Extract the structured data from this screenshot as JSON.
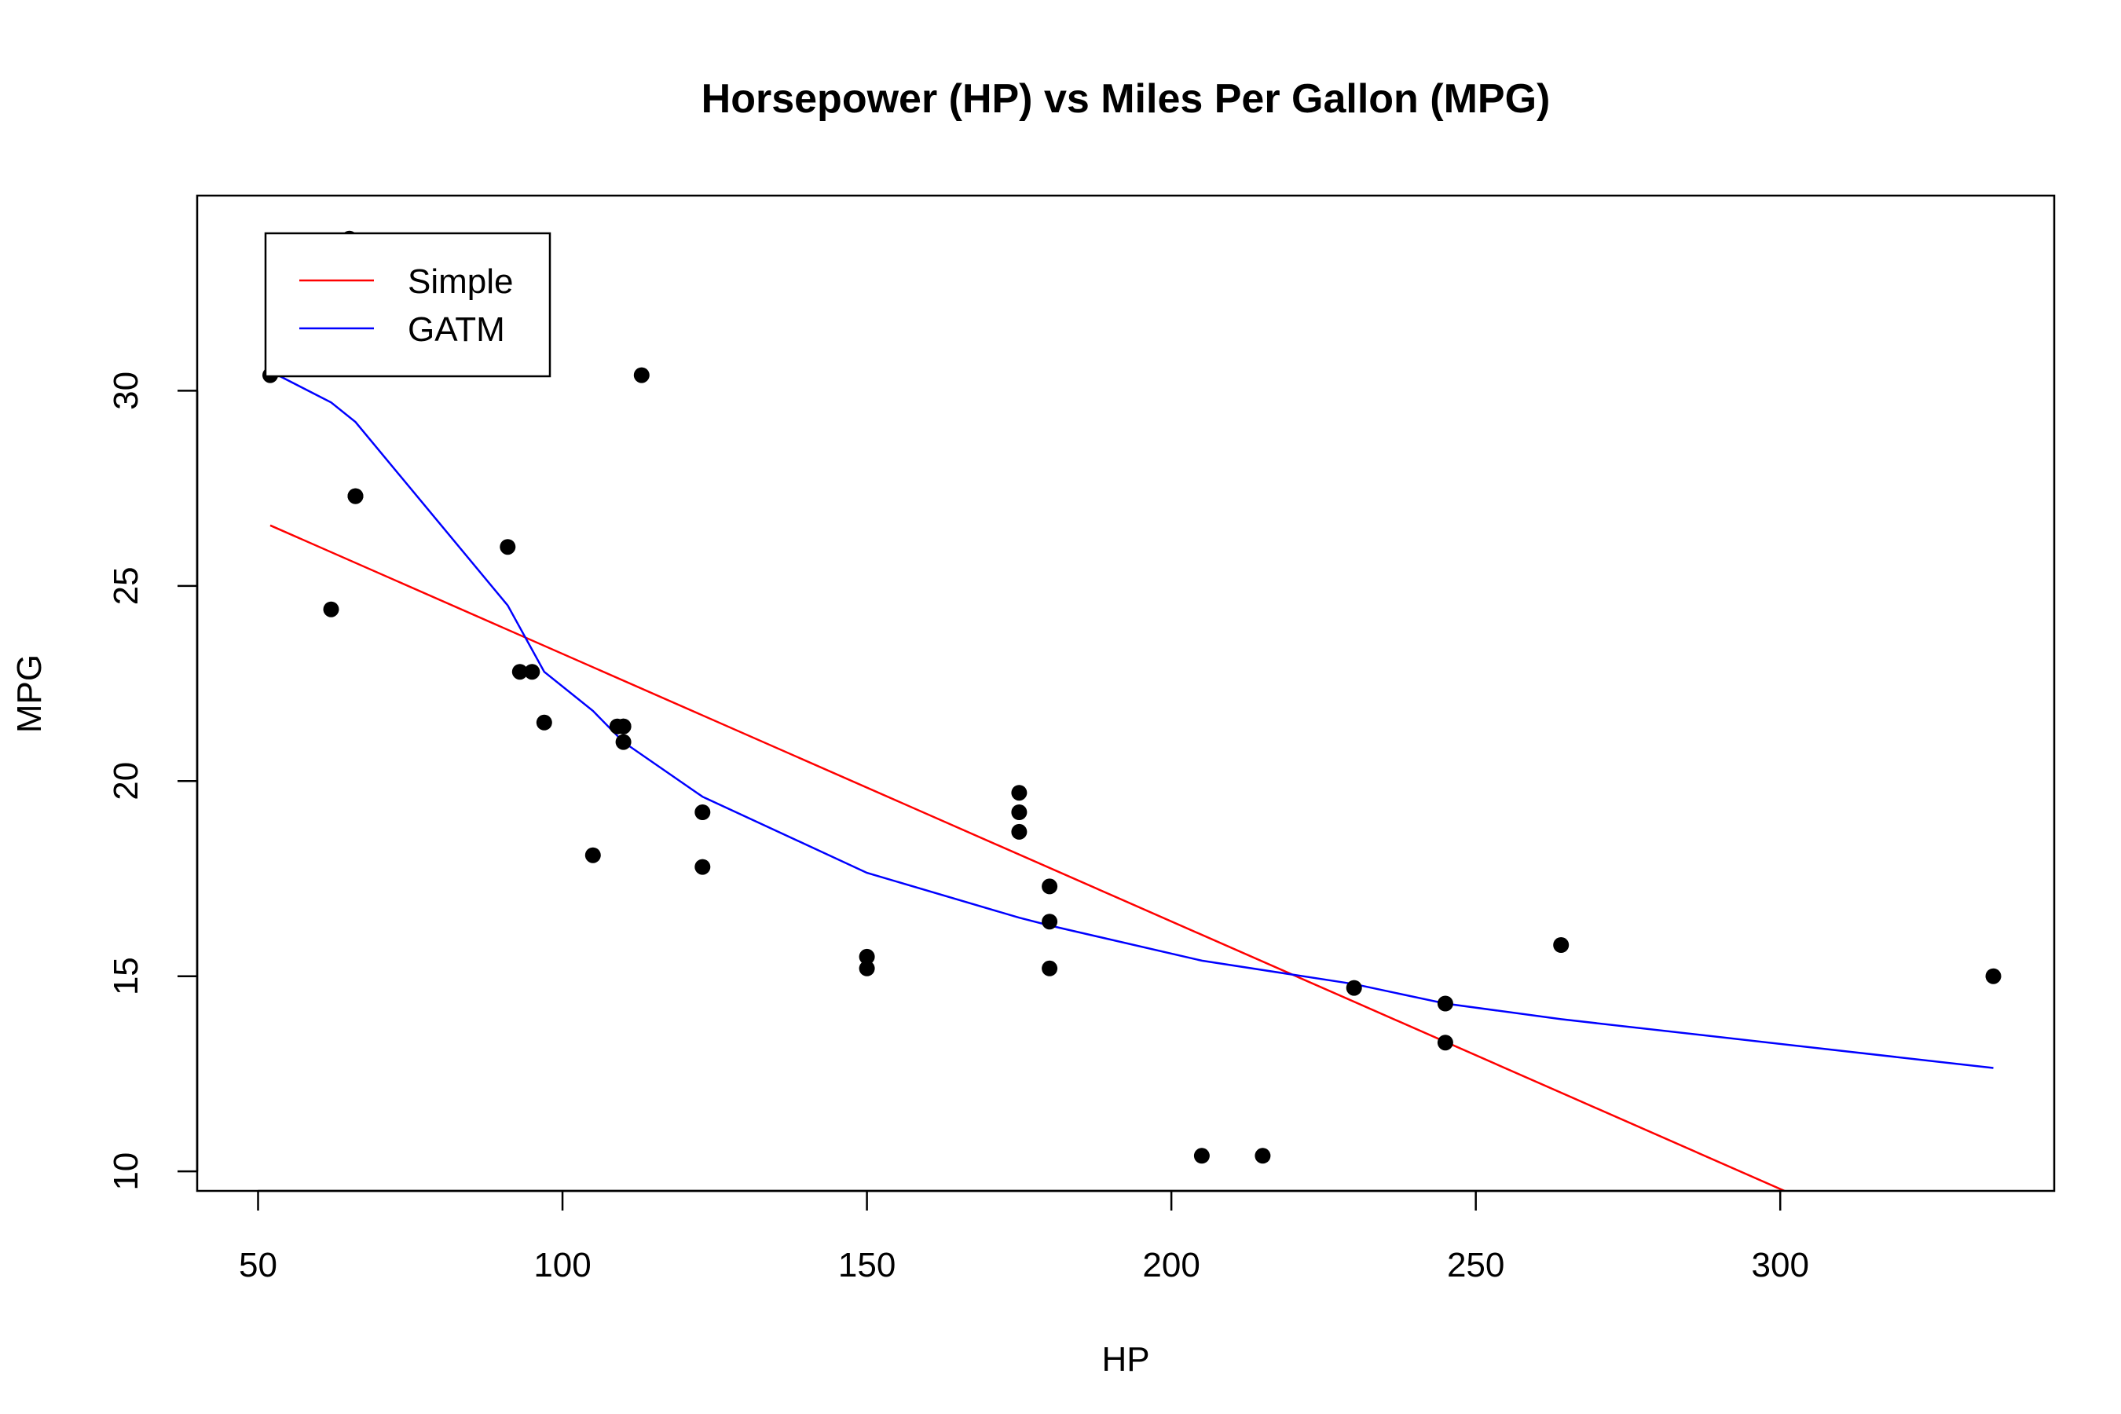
{
  "chart_data": {
    "type": "scatter",
    "title": "Horsepower (HP) vs Miles Per Gallon (MPG)",
    "xlabel": "HP",
    "ylabel": "MPG",
    "xlim": [
      40,
      345
    ],
    "ylim": [
      9.5,
      35
    ],
    "x_ticks": [
      50,
      100,
      150,
      200,
      250,
      300
    ],
    "y_ticks": [
      10,
      15,
      20,
      25,
      30
    ],
    "grid": false,
    "legend_position": "top-left",
    "points": {
      "color": "#000000",
      "x": [
        110,
        110,
        93,
        110,
        175,
        105,
        245,
        62,
        95,
        123,
        123,
        180,
        180,
        180,
        205,
        215,
        230,
        66,
        52,
        65,
        97,
        150,
        150,
        245,
        175,
        66,
        91,
        113,
        264,
        175,
        335,
        109
      ],
      "y": [
        21.0,
        21.4,
        22.8,
        21.4,
        18.7,
        18.1,
        14.3,
        24.4,
        22.8,
        19.2,
        17.8,
        16.4,
        17.3,
        15.2,
        10.4,
        10.4,
        14.7,
        27.3,
        30.4,
        33.9,
        21.5,
        15.5,
        15.2,
        13.3,
        19.2,
        27.3,
        26.0,
        30.4,
        15.8,
        19.7,
        15.0,
        21.4
      ]
    },
    "series": [
      {
        "name": "Simple",
        "color": "#ff0000",
        "x": [
          52,
          335
        ],
        "y": [
          26.55,
          7.15
        ]
      },
      {
        "name": "GATM",
        "color": "#0000ff",
        "x": [
          52,
          62,
          66,
          91,
          97,
          105,
          110,
          123,
          150,
          175,
          180,
          205,
          230,
          245,
          264,
          335
        ],
        "y": [
          30.5,
          29.7,
          29.2,
          24.5,
          22.8,
          21.8,
          21.0,
          19.6,
          17.65,
          16.5,
          16.3,
          15.4,
          14.8,
          14.3,
          13.9,
          12.65
        ]
      }
    ]
  }
}
